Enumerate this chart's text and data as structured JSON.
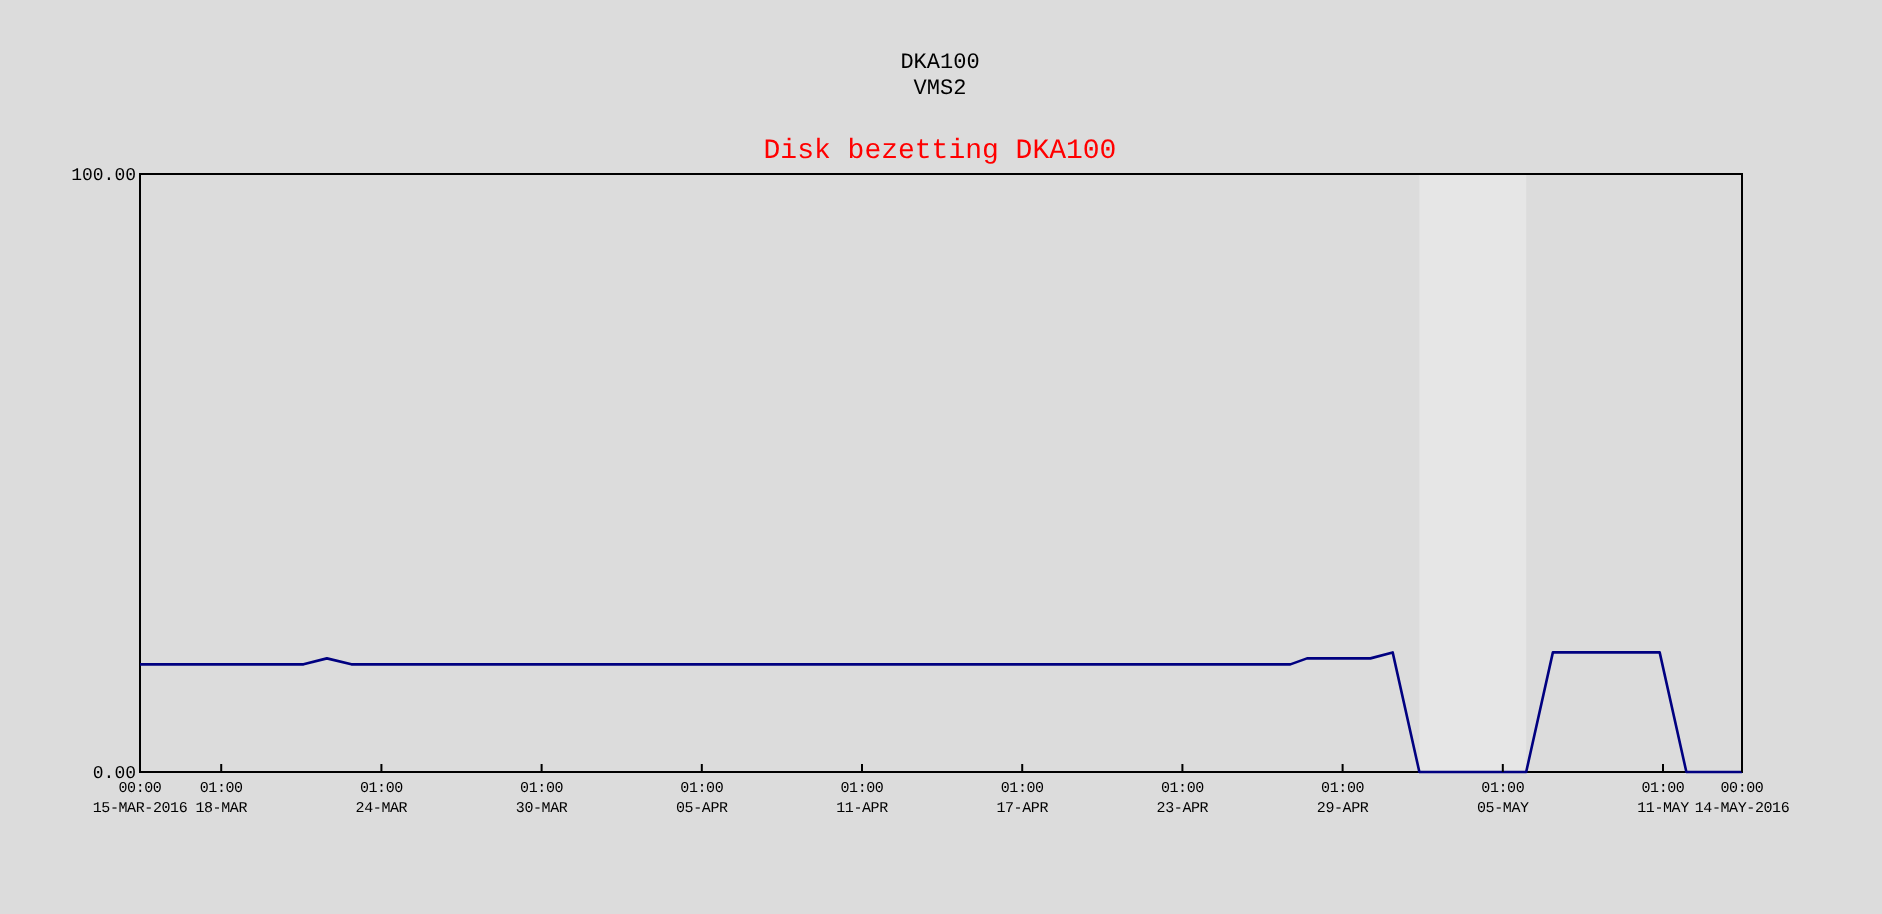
{
  "chart_data": {
    "type": "line",
    "title": "DKA100\nVMS2",
    "subtitle": "Disk bezetting DKA100",
    "x": [
      "2016-03-15T00:00",
      "2016-03-21T03:00",
      "2016-03-22T00:00",
      "2016-03-22T22:00",
      "2016-04-27T02:00",
      "2016-04-27T17:00",
      "2016-04-30T02:00",
      "2016-04-30T22:00",
      "2016-05-01T22:00",
      "2016-05-05T22:00",
      "2016-05-06T22:00",
      "2016-05-10T22:00",
      "2016-05-11T22:00",
      "2016-05-14T00:00"
    ],
    "series": [
      {
        "color": "#000080",
        "values": [
          18,
          18,
          19,
          18,
          18,
          19,
          19,
          20,
          0,
          0,
          20,
          20,
          0,
          0
        ]
      }
    ],
    "xlim": [
      "2016-03-15T00:00",
      "2016-05-14T00:00"
    ],
    "xticks": [
      {
        "value": "2016-03-15T00:00",
        "label": "00:00\n15-MAR-2016"
      },
      {
        "value": "2016-03-18T01:00",
        "label": "01:00\n18-MAR"
      },
      {
        "value": "2016-03-24T01:00",
        "label": "01:00\n24-MAR"
      },
      {
        "value": "2016-03-30T01:00",
        "label": "01:00\n30-MAR"
      },
      {
        "value": "2016-04-05T01:00",
        "label": "01:00\n05-APR"
      },
      {
        "value": "2016-04-11T01:00",
        "label": "01:00\n11-APR"
      },
      {
        "value": "2016-04-17T01:00",
        "label": "01:00\n17-APR"
      },
      {
        "value": "2016-04-23T01:00",
        "label": "01:00\n23-APR"
      },
      {
        "value": "2016-04-29T01:00",
        "label": "01:00\n29-APR"
      },
      {
        "value": "2016-05-05T01:00",
        "label": "01:00\n05-MAY"
      },
      {
        "value": "2016-05-11T01:00",
        "label": "01:00\n11-MAY"
      },
      {
        "value": "2016-05-14T00:00",
        "label": "00:00\n14-MAY-2016"
      }
    ],
    "ylim": [
      0,
      100
    ],
    "yticks": [
      {
        "value": 0,
        "label": "0.00"
      },
      {
        "value": 100,
        "label": "100.00"
      }
    ],
    "bands": [
      {
        "axis": "x",
        "from": "2016-05-01T22:00",
        "to": "2016-05-05T22:00",
        "color": "#e6e6e6"
      }
    ],
    "grid": false,
    "marker": "none",
    "line_style": "solid"
  }
}
